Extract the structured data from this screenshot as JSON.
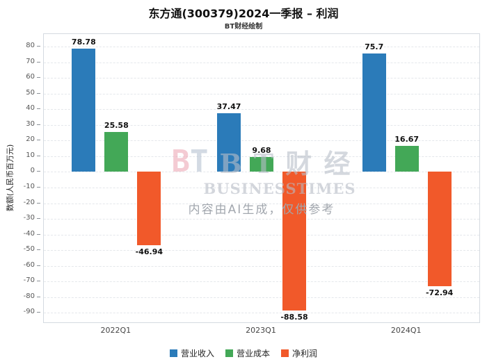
{
  "watermark": {
    "logo_b": "B",
    "logo_t": "T",
    "text": "B T 财 经",
    "text_en": "BUSINESSTIMES",
    "disclaimer": "内容由AI生成，仅供参考"
  },
  "chart_data": {
    "type": "bar",
    "title": "东方通(300379)2024一季报 – 利润",
    "subtitle": "BT财经绘制",
    "ylabel": "数额(人民币百万元)",
    "categories": [
      "2022Q1",
      "2023Q1",
      "2024Q1"
    ],
    "series": [
      {
        "name": "营业收入",
        "color": "#2b7bb9",
        "values": [
          78.78,
          37.47,
          75.7
        ]
      },
      {
        "name": "营业成本",
        "color": "#43a857",
        "values": [
          25.58,
          9.68,
          16.67
        ]
      },
      {
        "name": "净利润",
        "color": "#f1592a",
        "values": [
          -46.94,
          -88.58,
          -72.94
        ]
      }
    ],
    "ylim": [
      -96,
      88
    ],
    "ytick_step": 10,
    "grid": true,
    "legend_position": "bottom"
  }
}
